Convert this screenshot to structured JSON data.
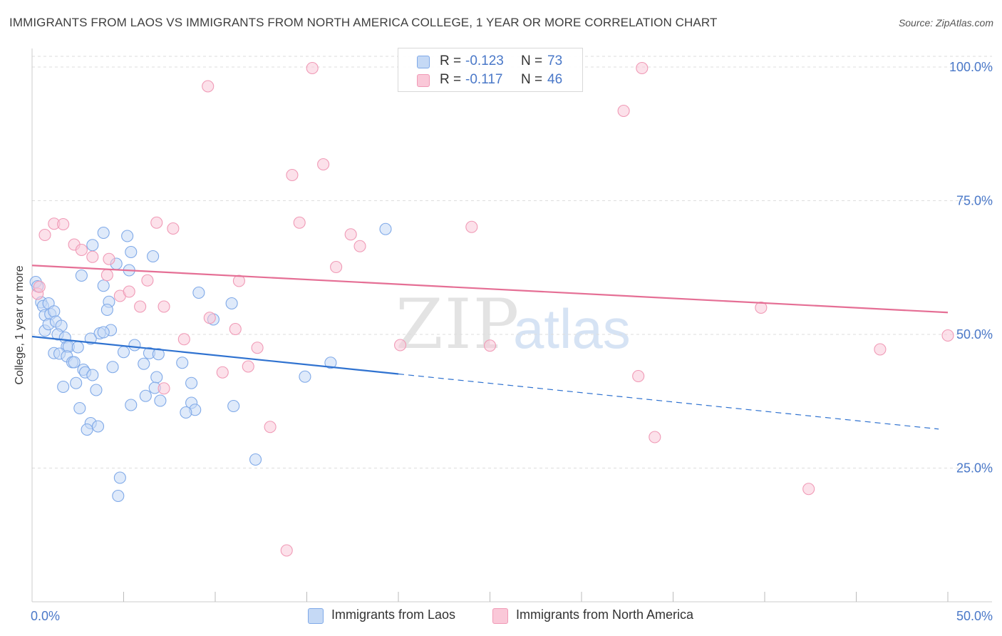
{
  "title": "IMMIGRANTS FROM LAOS VS IMMIGRANTS FROM NORTH AMERICA COLLEGE, 1 YEAR OR MORE CORRELATION CHART",
  "source": "Source: ZipAtlas.com",
  "watermark": {
    "zip": "ZIP",
    "atlas": "atlas"
  },
  "stats": [
    {
      "r_label": "R =",
      "r_value": "-0.123",
      "n_label": "N =",
      "n_value": "73"
    },
    {
      "r_label": "R =",
      "r_value": "-0.117",
      "n_label": "N =",
      "n_value": "46"
    }
  ],
  "chart_data": {
    "type": "scatter",
    "title": "IMMIGRANTS FROM LAOS VS IMMIGRANTS FROM NORTH AMERICA COLLEGE, 1 YEAR OR MORE CORRELATION CHART",
    "xlabel": "",
    "ylabel": "College, 1 year or more",
    "xlim": [
      0,
      50
    ],
    "ylim": [
      0,
      102
    ],
    "x_tick_labels": [
      {
        "value": 0,
        "label": "0.0%"
      },
      {
        "value": 50,
        "label": "50.0%"
      }
    ],
    "y_tick_labels": [
      {
        "value": 25,
        "label": "25.0%"
      },
      {
        "value": 50,
        "label": "50.0%"
      },
      {
        "value": 75,
        "label": "75.0%"
      },
      {
        "value": 100,
        "label": "100.0%"
      }
    ],
    "x_minor_ticks": [
      5,
      10,
      15,
      20,
      25,
      30,
      35,
      40,
      45,
      50
    ],
    "grid": true,
    "legend_position": "bottom-center",
    "series": [
      {
        "name": "Immigrants from Laos",
        "color": "#7fa9e8",
        "fill": "#c5d9f5",
        "line_color": "#2f72d0",
        "r": -0.123,
        "n": 73,
        "trend": {
          "x0": 0,
          "y0": 49.6,
          "x1": 20,
          "y1": 42.6,
          "extend_to": 49.5,
          "extend_y": 32.3
        },
        "points": [
          [
            0.2,
            59.8
          ],
          [
            0.3,
            59.0
          ],
          [
            0.5,
            56.0
          ],
          [
            0.6,
            55.3
          ],
          [
            0.9,
            55.8
          ],
          [
            0.7,
            53.6
          ],
          [
            1.0,
            53.8
          ],
          [
            1.2,
            54.3
          ],
          [
            0.7,
            50.7
          ],
          [
            0.9,
            51.9
          ],
          [
            1.3,
            52.4
          ],
          [
            1.6,
            51.6
          ],
          [
            1.4,
            50.0
          ],
          [
            1.8,
            49.4
          ],
          [
            1.9,
            47.7
          ],
          [
            2.0,
            47.7
          ],
          [
            1.2,
            46.5
          ],
          [
            1.5,
            46.4
          ],
          [
            1.9,
            45.9
          ],
          [
            2.2,
            44.8
          ],
          [
            2.3,
            44.8
          ],
          [
            2.5,
            47.6
          ],
          [
            2.8,
            43.4
          ],
          [
            2.9,
            42.9
          ],
          [
            3.3,
            42.4
          ],
          [
            2.4,
            40.9
          ],
          [
            1.7,
            40.2
          ],
          [
            3.5,
            39.6
          ],
          [
            2.6,
            36.2
          ],
          [
            3.2,
            33.4
          ],
          [
            3.0,
            32.2
          ],
          [
            3.6,
            32.8
          ],
          [
            3.3,
            66.7
          ],
          [
            3.9,
            69.0
          ],
          [
            5.2,
            68.4
          ],
          [
            5.4,
            65.4
          ],
          [
            4.6,
            63.2
          ],
          [
            5.3,
            62.0
          ],
          [
            2.7,
            61.0
          ],
          [
            3.9,
            59.1
          ],
          [
            4.2,
            56.1
          ],
          [
            4.1,
            54.6
          ],
          [
            4.3,
            50.8
          ],
          [
            3.7,
            50.2
          ],
          [
            3.9,
            50.4
          ],
          [
            3.2,
            49.2
          ],
          [
            5.6,
            48.0
          ],
          [
            5.0,
            46.7
          ],
          [
            6.4,
            46.5
          ],
          [
            6.9,
            46.3
          ],
          [
            4.4,
            43.9
          ],
          [
            6.1,
            44.5
          ],
          [
            8.2,
            44.7
          ],
          [
            6.8,
            42.0
          ],
          [
            6.7,
            40.0
          ],
          [
            6.2,
            38.5
          ],
          [
            7.0,
            37.6
          ],
          [
            5.4,
            36.8
          ],
          [
            8.7,
            40.9
          ],
          [
            8.7,
            37.2
          ],
          [
            8.9,
            35.9
          ],
          [
            8.4,
            35.4
          ],
          [
            6.6,
            64.6
          ],
          [
            10.9,
            55.8
          ],
          [
            9.9,
            52.8
          ],
          [
            12.2,
            26.6
          ],
          [
            4.8,
            23.2
          ],
          [
            4.7,
            19.8
          ],
          [
            19.3,
            69.7
          ],
          [
            16.3,
            44.7
          ],
          [
            14.9,
            42.1
          ],
          [
            9.1,
            57.8
          ],
          [
            11.0,
            36.6
          ]
        ]
      },
      {
        "name": "Immigrants from North America",
        "color": "#f09ab6",
        "fill": "#fac8d8",
        "line_color": "#e56f95",
        "r": -0.117,
        "n": 46,
        "trend": {
          "x0": 0,
          "y0": 62.9,
          "x1": 50,
          "y1": 54.1
        },
        "points": [
          [
            0.3,
            57.6
          ],
          [
            0.4,
            58.9
          ],
          [
            0.7,
            68.6
          ],
          [
            1.2,
            70.7
          ],
          [
            1.7,
            70.6
          ],
          [
            2.3,
            66.8
          ],
          [
            2.7,
            65.8
          ],
          [
            3.3,
            64.5
          ],
          [
            4.1,
            61.1
          ],
          [
            4.2,
            64.1
          ],
          [
            4.8,
            57.2
          ],
          [
            5.3,
            58.0
          ],
          [
            5.9,
            55.2
          ],
          [
            6.3,
            60.1
          ],
          [
            6.8,
            70.9
          ],
          [
            7.2,
            55.2
          ],
          [
            7.7,
            69.8
          ],
          [
            8.3,
            49.1
          ],
          [
            9.7,
            53.1
          ],
          [
            10.4,
            42.9
          ],
          [
            11.1,
            51.0
          ],
          [
            11.3,
            60.0
          ],
          [
            11.8,
            44.0
          ],
          [
            12.3,
            47.5
          ],
          [
            13.0,
            32.7
          ],
          [
            13.9,
            9.6
          ],
          [
            14.2,
            79.8
          ],
          [
            14.6,
            70.9
          ],
          [
            15.3,
            99.8
          ],
          [
            15.9,
            81.8
          ],
          [
            16.6,
            62.6
          ],
          [
            17.4,
            68.7
          ],
          [
            17.9,
            66.5
          ],
          [
            9.6,
            96.4
          ],
          [
            20.1,
            48.0
          ],
          [
            24.0,
            70.1
          ],
          [
            25.0,
            47.9
          ],
          [
            32.3,
            91.8
          ],
          [
            33.3,
            99.8
          ],
          [
            33.1,
            42.2
          ],
          [
            34.0,
            30.8
          ],
          [
            39.8,
            55.0
          ],
          [
            42.4,
            21.1
          ],
          [
            46.3,
            47.2
          ],
          [
            50.0,
            49.8
          ],
          [
            7.2,
            39.9
          ]
        ]
      }
    ]
  }
}
